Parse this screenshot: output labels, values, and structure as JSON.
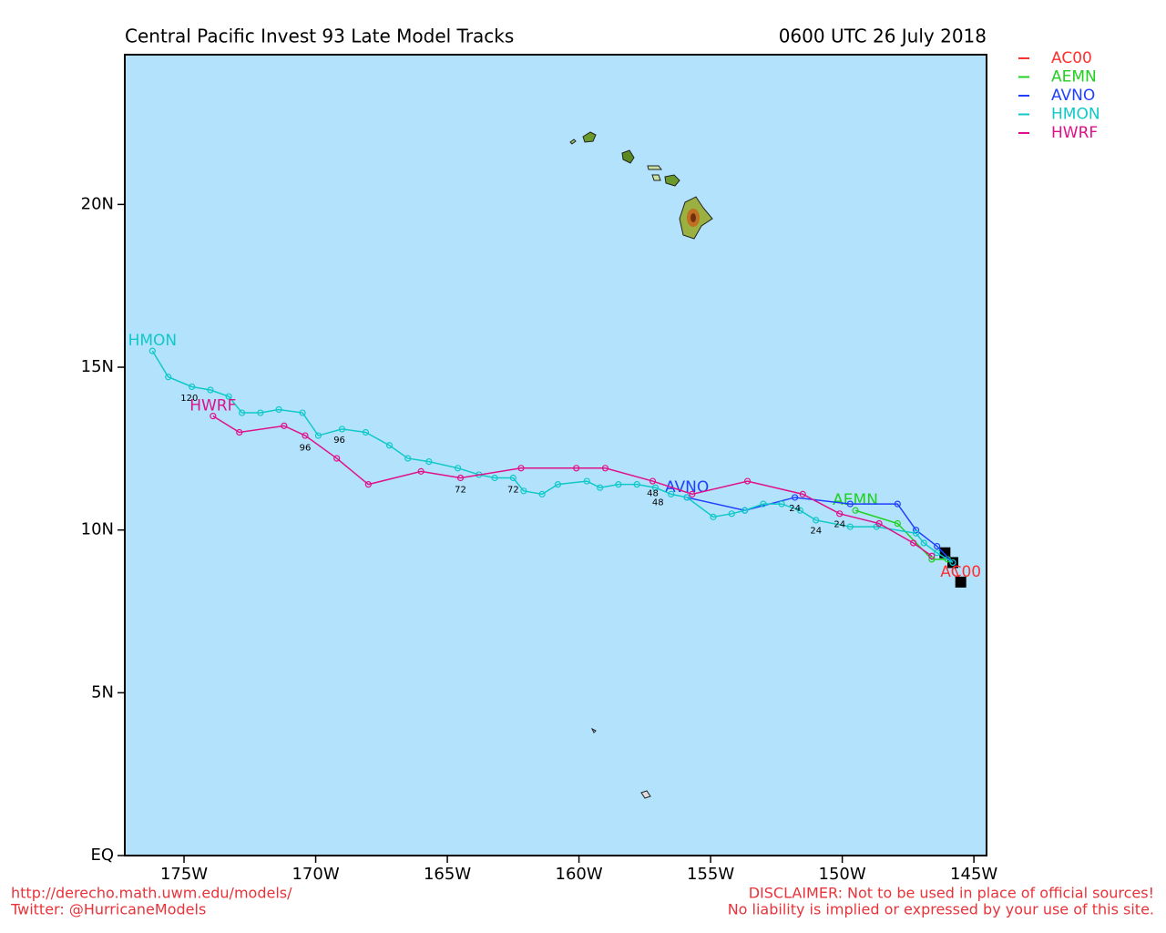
{
  "chart_data": {
    "type": "track-map",
    "title": "Central Pacific Invest 93 Late Model Tracks",
    "subtitle": "0600 UTC 26 July 2018",
    "xlim": [
      -177.25,
      -144.52
    ],
    "ylim": [
      0,
      24.6
    ],
    "xticks": [
      {
        "value": -175,
        "label": "175W"
      },
      {
        "value": -170,
        "label": "170W"
      },
      {
        "value": -165,
        "label": "165W"
      },
      {
        "value": -160,
        "label": "160W"
      },
      {
        "value": -155,
        "label": "155W"
      },
      {
        "value": -150,
        "label": "150W"
      },
      {
        "value": -145,
        "label": "145W"
      }
    ],
    "yticks": [
      {
        "value": 0,
        "label": "EQ"
      },
      {
        "value": 5,
        "label": "5N"
      },
      {
        "value": 10,
        "label": "10N"
      },
      {
        "value": 15,
        "label": "15N"
      },
      {
        "value": 20,
        "label": "20N"
      }
    ],
    "legend": "outside-top-right",
    "series": [
      {
        "name": "AC00",
        "color": "#ff3030",
        "x": [
          -146.1,
          -145.8,
          -145.5
        ],
        "y": [
          9.3,
          9.0,
          8.4
        ]
      },
      {
        "name": "AEMN",
        "color": "#20d020",
        "x": [
          -146.0,
          -146.6,
          -147.9,
          -149.5
        ],
        "y": [
          9.1,
          9.1,
          10.2,
          10.6
        ]
      },
      {
        "name": "AVNO",
        "color": "#2040ff",
        "x": [
          -145.8,
          -146.4,
          -147.2,
          -147.9,
          -149.7,
          -151.8,
          -153.7,
          -155.9
        ],
        "y": [
          9.0,
          9.5,
          10.0,
          10.8,
          10.8,
          11.0,
          10.6,
          11.0
        ]
      },
      {
        "name": "HMON",
        "color": "#10c8c8",
        "x": [
          -145.8,
          -146.4,
          -146.9,
          -147.2,
          -148.7,
          -149.7,
          -151.0,
          -151.6,
          -152.3,
          -153.0,
          -153.7,
          -154.2,
          -154.9,
          -155.9,
          -156.5,
          -157.1,
          -157.8,
          -158.5,
          -159.2,
          -159.7,
          -160.8,
          -161.4,
          -162.1,
          -162.5,
          -163.2,
          -163.8,
          -164.6,
          -165.7,
          -166.5,
          -167.2,
          -168.1,
          -169.0,
          -169.9,
          -170.5,
          -171.4,
          -172.1,
          -172.8,
          -173.3,
          -174.0,
          -174.7,
          -175.6,
          -176.2
        ],
        "y": [
          9.0,
          9.3,
          9.6,
          9.9,
          10.1,
          10.1,
          10.3,
          10.6,
          10.8,
          10.8,
          10.6,
          10.5,
          10.4,
          11.0,
          11.1,
          11.3,
          11.4,
          11.4,
          11.3,
          11.5,
          11.4,
          11.1,
          11.2,
          11.6,
          11.6,
          11.7,
          11.9,
          12.1,
          12.2,
          12.6,
          13.0,
          13.1,
          12.9,
          13.6,
          13.7,
          13.6,
          13.6,
          14.1,
          14.3,
          14.4,
          14.7,
          15.5
        ]
      },
      {
        "name": "HWRF",
        "color": "#e0108a",
        "x": [
          -146.6,
          -147.3,
          -148.6,
          -150.1,
          -151.5,
          -153.6,
          -155.7,
          -157.2,
          -159.0,
          -160.1,
          -162.2,
          -164.5,
          -166.0,
          -168.0,
          -169.2,
          -170.4,
          -171.2,
          -172.9,
          -173.9
        ],
        "y": [
          9.2,
          9.6,
          10.2,
          10.5,
          11.1,
          11.5,
          11.1,
          11.5,
          11.9,
          11.9,
          11.9,
          11.6,
          11.8,
          11.4,
          12.2,
          12.9,
          13.2,
          13.0,
          13.5
        ]
      }
    ],
    "annotations": [
      {
        "text": "120",
        "x": -174.8,
        "y": 14.05
      },
      {
        "text": "96",
        "x": -170.4,
        "y": 12.53
      },
      {
        "text": "96",
        "x": -169.1,
        "y": 12.76
      },
      {
        "text": "72",
        "x": -164.5,
        "y": 11.23
      },
      {
        "text": "72",
        "x": -162.5,
        "y": 11.23
      },
      {
        "text": "48",
        "x": -157.2,
        "y": 11.12
      },
      {
        "text": "48",
        "x": -157.0,
        "y": 10.85
      },
      {
        "text": "24",
        "x": -151.8,
        "y": 10.66
      },
      {
        "text": "24",
        "x": -150.1,
        "y": 10.17
      },
      {
        "text": "24",
        "x": -151.0,
        "y": 9.98
      }
    ]
  },
  "footer_left": [
    "http://derecho.math.uwm.edu/models/",
    "Twitter: @HurricaneModels"
  ],
  "footer_right": [
    "DISCLAIMER: Not to be used in place of official sources!",
    "No liability is implied or expressed by your use of this site."
  ]
}
